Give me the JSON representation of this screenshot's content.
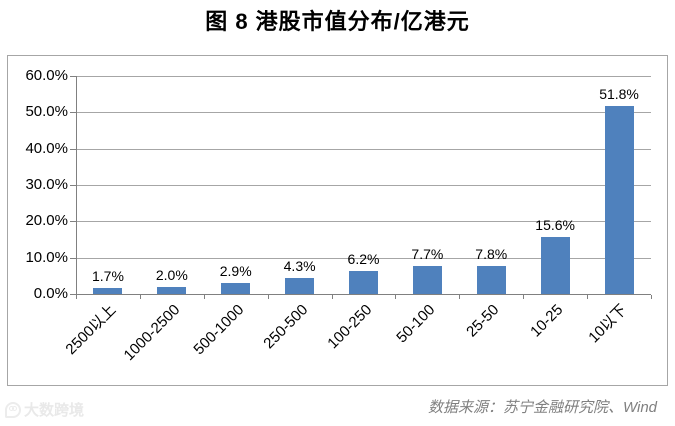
{
  "page": {
    "title": "图 8 港股市值分布/亿港元"
  },
  "chart_data": {
    "type": "bar",
    "title": "图 8 港股市值分布/亿港元",
    "categories": [
      "2500以上",
      "1000-2500",
      "500-1000",
      "250-500",
      "100-250",
      "50-100",
      "25-50",
      "10-25",
      "10以下"
    ],
    "values": [
      1.7,
      2.0,
      2.9,
      4.3,
      6.2,
      7.7,
      7.8,
      15.6,
      51.8
    ],
    "data_labels": [
      "1.7%",
      "2.0%",
      "2.9%",
      "4.3%",
      "6.2%",
      "7.7%",
      "7.8%",
      "15.6%",
      "51.8%"
    ],
    "xlabel": "",
    "ylabel": "",
    "ylim": [
      0,
      60
    ],
    "ytick_step": 10,
    "ytick_labels": [
      "0.0%",
      "10.0%",
      "20.0%",
      "30.0%",
      "40.0%",
      "50.0%",
      "60.0%"
    ],
    "grid": true,
    "legend": "none",
    "bar_color": "#4f81bd",
    "gridline_color": "#a6a6a6",
    "axis_color": "#808080",
    "frame_border_color": "#a6a6a6"
  },
  "footer": {
    "source": "数据来源：苏宁金融研究院、Wind",
    "watermark": "大数跨境"
  }
}
